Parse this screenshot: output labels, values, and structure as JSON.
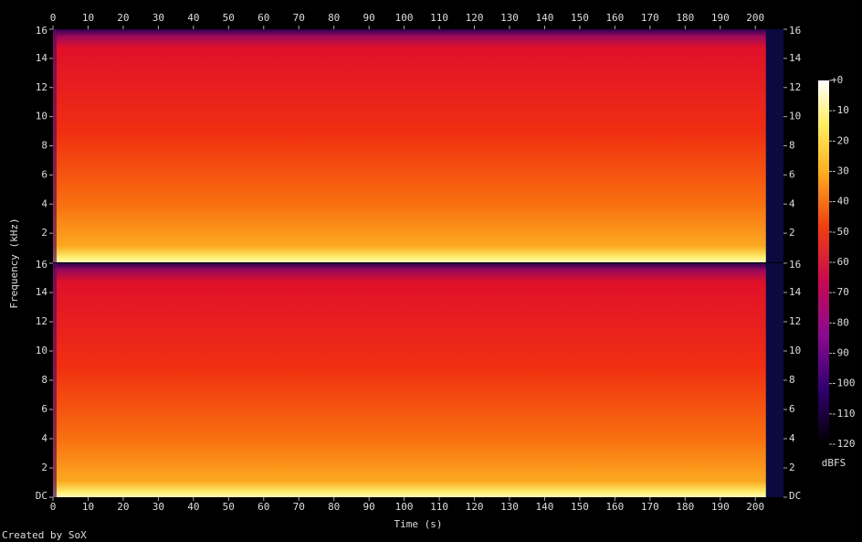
{
  "chart_data": {
    "type": "spectrogram",
    "xlabel": "Time (s)",
    "ylabel": "Frequency (kHz)",
    "xlim": [
      0,
      208
    ],
    "xticks": [
      0,
      10,
      20,
      30,
      40,
      50,
      60,
      70,
      80,
      90,
      100,
      110,
      120,
      130,
      140,
      150,
      160,
      170,
      180,
      190,
      200
    ],
    "channels": [
      {
        "ylim": [
          0,
          16
        ],
        "yticks": [
          2,
          4,
          6,
          8,
          10,
          12,
          14,
          16
        ]
      },
      {
        "ylim": [
          0,
          16
        ],
        "yticks": [
          {
            "value": 0,
            "label": "DC"
          },
          2,
          4,
          6,
          8,
          10,
          12,
          14,
          16
        ]
      }
    ],
    "colorbar": {
      "label": "dBFS",
      "lim": [
        -120,
        0
      ],
      "ticks": [
        {
          "value": 0,
          "label": "+0"
        },
        -10,
        -20,
        -30,
        -40,
        -50,
        -60,
        -70,
        -80,
        -90,
        -100,
        -110,
        -120
      ]
    },
    "credit": "Created by SoX"
  }
}
